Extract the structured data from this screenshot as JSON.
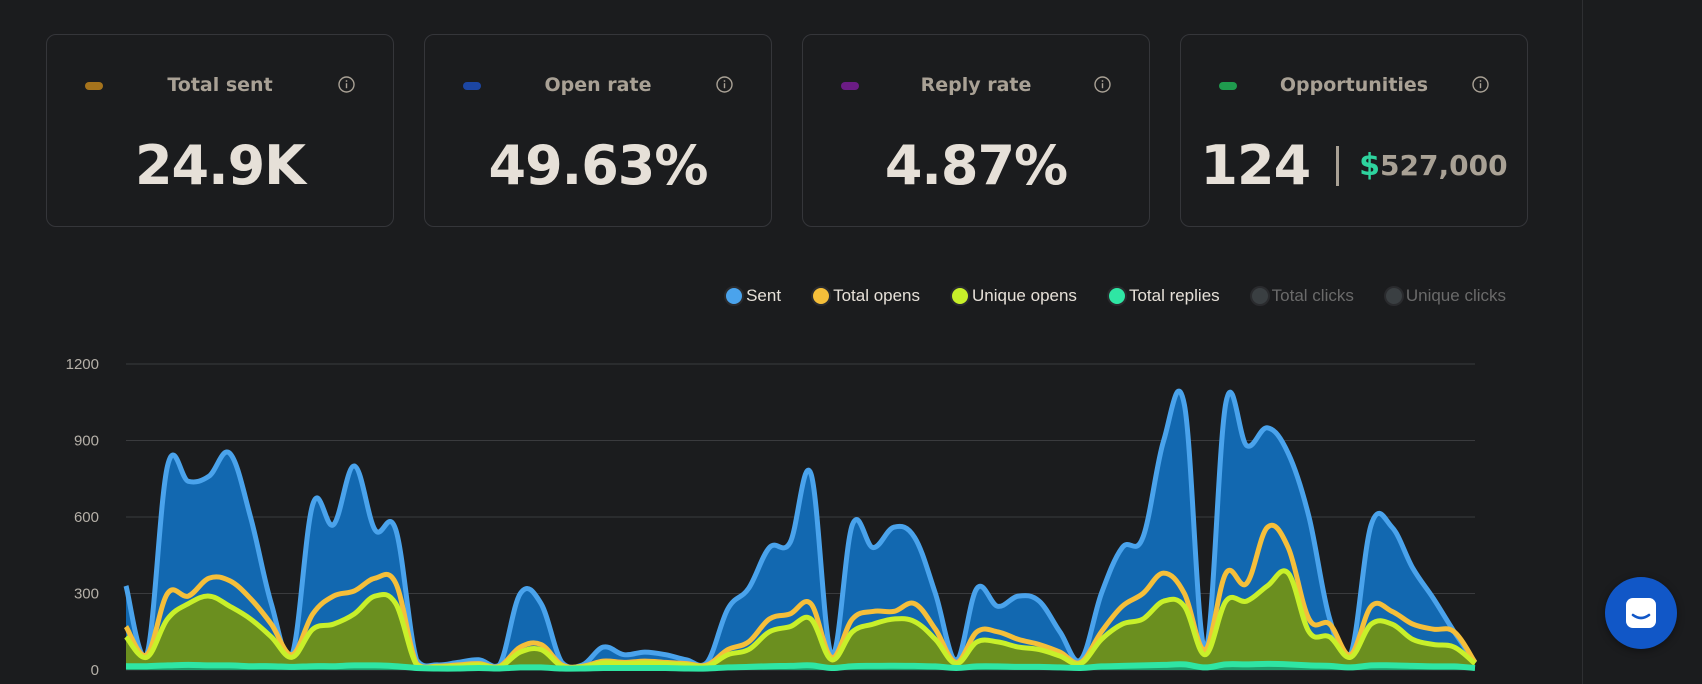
{
  "cards": [
    {
      "title": "Total sent",
      "value": "24.9K",
      "color": "#a5731c"
    },
    {
      "title": "Open rate",
      "value": "49.63%",
      "color": "#1c46a3"
    },
    {
      "title": "Reply rate",
      "value": "4.87%",
      "color": "#6b1c84"
    },
    {
      "title": "Opportunities",
      "count": "124",
      "currency": "$",
      "amount": "527,000",
      "color": "#1f9b4e"
    }
  ],
  "legend": [
    {
      "label": "Sent",
      "color": "#4aa3ec",
      "active": true
    },
    {
      "label": "Total opens",
      "color": "#f5bf3a",
      "active": true
    },
    {
      "label": "Unique opens",
      "color": "#c8f02a",
      "active": true
    },
    {
      "label": "Total replies",
      "color": "#2fe6a4",
      "active": true
    },
    {
      "label": "Total clicks",
      "color": "#3a3f42",
      "active": false
    },
    {
      "label": "Unique clicks",
      "color": "#3a3f42",
      "active": false
    }
  ],
  "icons": {
    "info": "info-icon",
    "chat": "chat-icon"
  },
  "chart_data": {
    "type": "area",
    "y_ticks": [
      "0",
      "300",
      "600",
      "900",
      "1200"
    ],
    "ylim": [
      0,
      1200
    ],
    "grid": true,
    "legend_position": "top-right",
    "series": [
      {
        "name": "Sent",
        "color": "#4aa3ec",
        "fill": "#1268b0",
        "values": [
          330,
          60,
          800,
          740,
          760,
          850,
          600,
          260,
          60,
          650,
          570,
          800,
          550,
          550,
          40,
          20,
          30,
          40,
          20,
          300,
          260,
          30,
          20,
          90,
          60,
          70,
          60,
          40,
          30,
          240,
          320,
          480,
          500,
          770,
          60,
          570,
          480,
          560,
          520,
          300,
          40,
          320,
          250,
          290,
          270,
          150,
          40,
          300,
          480,
          520,
          900,
          1040,
          80,
          1050,
          880,
          950,
          850,
          600,
          200,
          60,
          570,
          560,
          400,
          280,
          150,
          30
        ]
      },
      {
        "name": "Total opens",
        "color": "#f5bf3a",
        "fill": "none",
        "values": [
          170,
          60,
          300,
          290,
          360,
          350,
          280,
          180,
          60,
          220,
          290,
          310,
          360,
          340,
          25,
          15,
          20,
          25,
          15,
          90,
          100,
          20,
          15,
          35,
          30,
          35,
          30,
          25,
          20,
          80,
          110,
          200,
          220,
          260,
          50,
          200,
          230,
          230,
          260,
          160,
          30,
          150,
          150,
          120,
          100,
          70,
          30,
          150,
          250,
          300,
          380,
          300,
          80,
          380,
          340,
          560,
          480,
          200,
          180,
          60,
          250,
          230,
          180,
          160,
          150,
          30
        ]
      },
      {
        "name": "Unique opens",
        "color": "#c8f02a",
        "fill": "#6b8f1f",
        "values": [
          130,
          50,
          200,
          260,
          290,
          250,
          200,
          130,
          50,
          160,
          180,
          220,
          290,
          260,
          20,
          12,
          15,
          20,
          12,
          70,
          80,
          15,
          12,
          28,
          25,
          28,
          25,
          20,
          15,
          60,
          80,
          150,
          170,
          200,
          40,
          150,
          180,
          200,
          190,
          120,
          25,
          110,
          110,
          90,
          80,
          55,
          25,
          120,
          180,
          200,
          270,
          250,
          60,
          270,
          270,
          330,
          380,
          150,
          130,
          50,
          180,
          180,
          120,
          100,
          90,
          25
        ]
      },
      {
        "name": "Total replies",
        "color": "#2fe6a4",
        "fill": "#1f9b6a",
        "values": [
          15,
          15,
          18,
          20,
          18,
          18,
          15,
          15,
          12,
          15,
          15,
          18,
          18,
          15,
          8,
          6,
          6,
          8,
          6,
          10,
          10,
          6,
          6,
          8,
          8,
          8,
          8,
          6,
          6,
          10,
          12,
          15,
          16,
          18,
          8,
          15,
          16,
          17,
          16,
          14,
          8,
          14,
          14,
          12,
          12,
          10,
          8,
          14,
          16,
          18,
          20,
          22,
          10,
          22,
          22,
          24,
          22,
          18,
          16,
          10,
          18,
          18,
          16,
          14,
          14,
          8
        ]
      }
    ]
  }
}
